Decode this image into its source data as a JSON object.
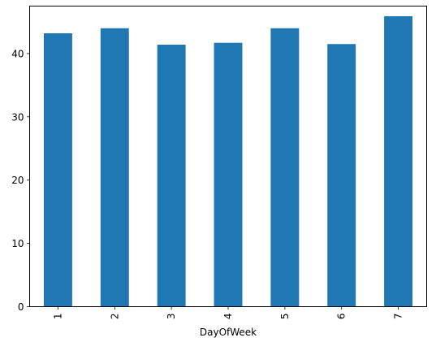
{
  "chart_data": {
    "type": "bar",
    "title": "",
    "xlabel": "DayOfWeek",
    "ylabel": "",
    "categories": [
      "1",
      "2",
      "3",
      "4",
      "5",
      "6",
      "7"
    ],
    "values": [
      43.2,
      44.0,
      41.4,
      41.7,
      44.0,
      41.5,
      45.9
    ],
    "ylim": [
      0,
      47.5
    ],
    "yticks": [
      0,
      10,
      20,
      30,
      40
    ],
    "ytick_labels": [
      "0",
      "10",
      "20",
      "30",
      "40"
    ],
    "grid": false,
    "legend": "none",
    "bar_color": "#1f77b4"
  }
}
